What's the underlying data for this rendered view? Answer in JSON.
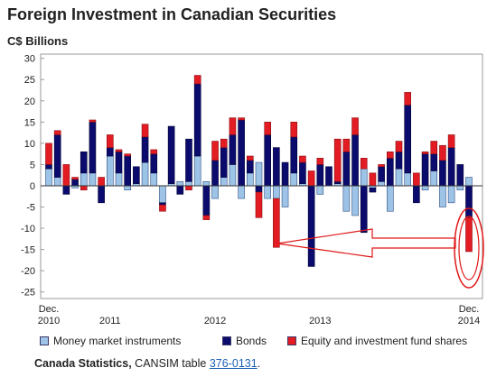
{
  "chart_data": {
    "type": "bar",
    "stacked": true,
    "title": "Foreign Investment in Canadian Securities",
    "ylabel": "C$ Billions",
    "ylim": [
      -25,
      30
    ],
    "y_ticks": [
      30,
      25,
      20,
      15,
      10,
      5,
      0,
      -5,
      -10,
      -15,
      -20,
      -25
    ],
    "grid": false,
    "legend": "bottom",
    "x": [
      "2010-12",
      "2011-01",
      "2011-02",
      "2011-03",
      "2011-04",
      "2011-05",
      "2011-06",
      "2011-07",
      "2011-08",
      "2011-09",
      "2011-10",
      "2011-11",
      "2011-12",
      "2012-01",
      "2012-02",
      "2012-03",
      "2012-04",
      "2012-05",
      "2012-06",
      "2012-07",
      "2012-08",
      "2012-09",
      "2012-10",
      "2012-11",
      "2012-12",
      "2013-01",
      "2013-02",
      "2013-03",
      "2013-04",
      "2013-05",
      "2013-06",
      "2013-07",
      "2013-08",
      "2013-09",
      "2013-10",
      "2013-11",
      "2013-12",
      "2014-01",
      "2014-02",
      "2014-03",
      "2014-04",
      "2014-05",
      "2014-06",
      "2014-07",
      "2014-08",
      "2014-09",
      "2014-10",
      "2014-11",
      "2014-12"
    ],
    "x_tick_labels": [
      {
        "x": "2010-12",
        "line1": "Dec.",
        "line2": "2010"
      },
      {
        "x": "2011-07",
        "line1": "",
        "line2": "2011"
      },
      {
        "x": "2012-07",
        "line1": "",
        "line2": "2012"
      },
      {
        "x": "2013-07",
        "line1": "",
        "line2": "2013"
      },
      {
        "x": "2014-12",
        "line1": "Dec.",
        "line2": "2014"
      }
    ],
    "series": [
      {
        "name": "Money market instruments",
        "color": "#9dc3e6",
        "values": [
          4,
          2,
          0,
          -0.5,
          3,
          3,
          0,
          7,
          3,
          -1,
          0.5,
          5.5,
          3,
          -4,
          0.5,
          1,
          1,
          7,
          1,
          -3,
          2,
          5,
          -3,
          3,
          5.5,
          -3,
          -3,
          -5,
          3,
          0.5,
          0,
          -2,
          0,
          0.5,
          -6,
          -7,
          4,
          -0.5,
          1,
          -6,
          4,
          3,
          0,
          -1,
          3.5,
          -5,
          -4,
          -1,
          2
        ]
      },
      {
        "name": "Bonds",
        "color": "#0b0b6e",
        "values": [
          1,
          10,
          -2,
          1.5,
          5,
          12,
          -4,
          2,
          5,
          7,
          4,
          6,
          4.5,
          -0.5,
          13.5,
          -2,
          10,
          17,
          -7,
          6,
          7,
          7,
          15.5,
          3,
          -1.5,
          12,
          9,
          5.5,
          8.5,
          5,
          -19,
          5,
          4.5,
          0.5,
          8,
          12,
          -11,
          -1,
          3.5,
          6.5,
          4,
          16,
          -4,
          7.5,
          4,
          6,
          9,
          5,
          -7.5
        ]
      },
      {
        "name": "Equity and investment fund shares",
        "color": "#e31b23",
        "values": [
          5,
          1,
          5,
          0.5,
          -1,
          0.5,
          2,
          3,
          0.5,
          0.5,
          0,
          3,
          1,
          -1.5,
          0,
          0,
          -1,
          2,
          -1,
          4.5,
          2,
          4,
          0.5,
          1,
          -6,
          3,
          -11.5,
          0,
          3.5,
          1.5,
          3.5,
          1.5,
          0,
          10,
          3,
          4,
          2.5,
          3,
          0.5,
          1.5,
          2.5,
          3,
          3,
          0.5,
          3,
          3.5,
          3,
          0,
          -8
        ]
      }
    ]
  },
  "source": {
    "prefix": "Canada Statistics,",
    "table_text": "CANSIM table",
    "table_id": "376-0131",
    "suffix": "."
  }
}
